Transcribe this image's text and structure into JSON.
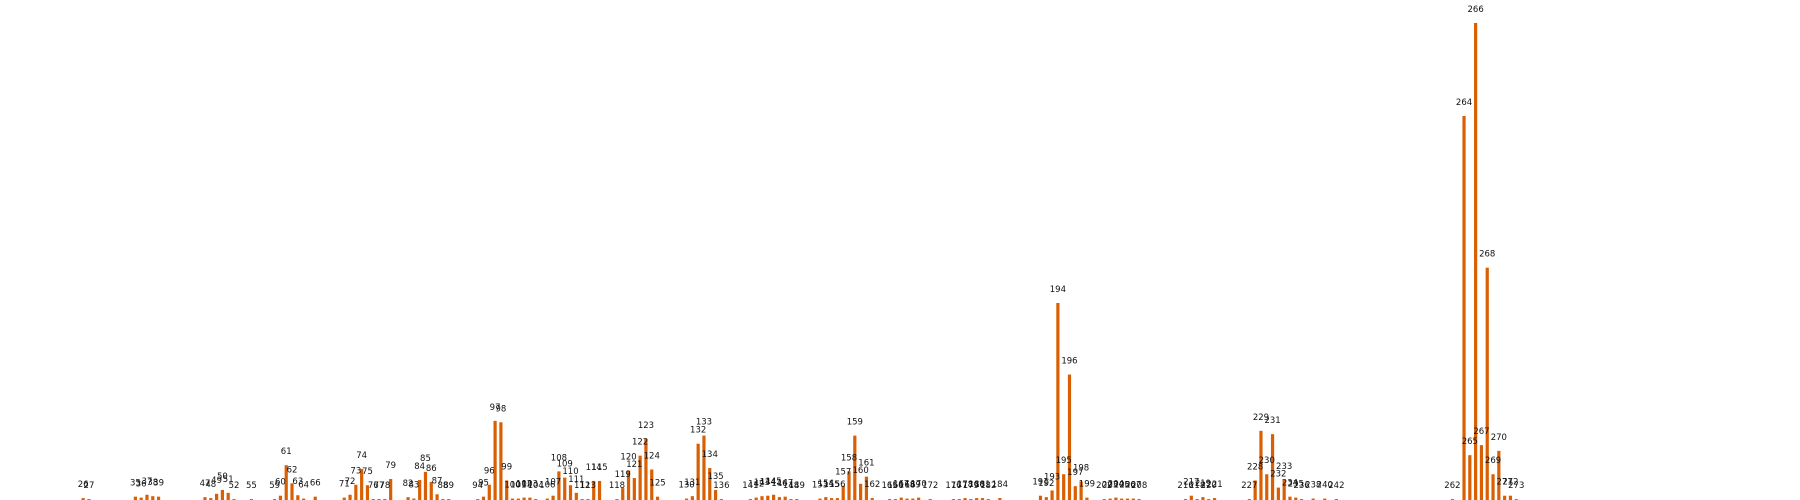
{
  "chart_data": {
    "type": "bar",
    "title": "",
    "xlabel": "",
    "ylabel": "",
    "bar_color": "#d95f02",
    "ylim": [
      0,
      100
    ],
    "grid": false,
    "legend": "none",
    "points": [
      {
        "x": 26,
        "label": "26",
        "value": 0.4
      },
      {
        "x": 27,
        "label": "27",
        "value": 0.2
      },
      {
        "x": 35,
        "label": "35",
        "value": 0.7
      },
      {
        "x": 36,
        "label": "36",
        "value": 0.5
      },
      {
        "x": 37,
        "label": "37",
        "value": 1.1
      },
      {
        "x": 38,
        "label": "38",
        "value": 0.8
      },
      {
        "x": 39,
        "label": "39",
        "value": 0.7
      },
      {
        "x": 47,
        "label": "47",
        "value": 0.6
      },
      {
        "x": 48,
        "label": "48",
        "value": 0.4
      },
      {
        "x": 49,
        "label": "49",
        "value": 1.3
      },
      {
        "x": 50,
        "label": "50",
        "value": 2.1
      },
      {
        "x": 51,
        "label": "51",
        "value": 1.5
      },
      {
        "x": 52,
        "label": "52",
        "value": 0.2
      },
      {
        "x": 55,
        "label": "55",
        "value": 0.2
      },
      {
        "x": 59,
        "label": "59",
        "value": 0.2
      },
      {
        "x": 60,
        "label": "60",
        "value": 0.9
      },
      {
        "x": 61,
        "label": "61",
        "value": 7.3
      },
      {
        "x": 62,
        "label": "62",
        "value": 3.5
      },
      {
        "x": 63,
        "label": "63",
        "value": 1.0
      },
      {
        "x": 64,
        "label": "64",
        "value": 0.3
      },
      {
        "x": 66,
        "label": "66",
        "value": 0.7
      },
      {
        "x": 71,
        "label": "71",
        "value": 0.5
      },
      {
        "x": 72,
        "label": "72",
        "value": 1.1
      },
      {
        "x": 73,
        "label": "73",
        "value": 3.2
      },
      {
        "x": 74,
        "label": "74",
        "value": 6.5
      },
      {
        "x": 75,
        "label": "75",
        "value": 3.1
      },
      {
        "x": 76,
        "label": "76",
        "value": 0.2
      },
      {
        "x": 77,
        "label": "77",
        "value": 0.2
      },
      {
        "x": 78,
        "label": "78",
        "value": 0.2
      },
      {
        "x": 79,
        "label": "79",
        "value": 4.4
      },
      {
        "x": 82,
        "label": "82",
        "value": 0.6
      },
      {
        "x": 83,
        "label": "83",
        "value": 0.3
      },
      {
        "x": 84,
        "label": "84",
        "value": 4.2
      },
      {
        "x": 85,
        "label": "85",
        "value": 5.9
      },
      {
        "x": 86,
        "label": "86",
        "value": 3.8
      },
      {
        "x": 87,
        "label": "87",
        "value": 1.2
      },
      {
        "x": 88,
        "label": "88",
        "value": 0.2
      },
      {
        "x": 89,
        "label": "89",
        "value": 0.2
      },
      {
        "x": 94,
        "label": "94",
        "value": 0.2
      },
      {
        "x": 95,
        "label": "95",
        "value": 0.7
      },
      {
        "x": 96,
        "label": "96",
        "value": 3.2
      },
      {
        "x": 97,
        "label": "97",
        "value": 16.6
      },
      {
        "x": 98,
        "label": "98",
        "value": 16.3
      },
      {
        "x": 99,
        "label": "99",
        "value": 4.1
      },
      {
        "x": 100,
        "label": "100",
        "value": 0.3
      },
      {
        "x": 101,
        "label": "101",
        "value": 0.3
      },
      {
        "x": 102,
        "label": "102",
        "value": 0.5
      },
      {
        "x": 103,
        "label": "103",
        "value": 0.5
      },
      {
        "x": 104,
        "label": "104",
        "value": 0.2
      },
      {
        "x": 106,
        "label": "106",
        "value": 0.3
      },
      {
        "x": 107,
        "label": "107",
        "value": 0.9
      },
      {
        "x": 108,
        "label": "108",
        "value": 6.0
      },
      {
        "x": 109,
        "label": "109",
        "value": 4.7
      },
      {
        "x": 110,
        "label": "110",
        "value": 3.1
      },
      {
        "x": 111,
        "label": "111",
        "value": 1.5
      },
      {
        "x": 112,
        "label": "112",
        "value": 0.2
      },
      {
        "x": 113,
        "label": "113",
        "value": 0.2
      },
      {
        "x": 114,
        "label": "114",
        "value": 4.0
      },
      {
        "x": 115,
        "label": "115",
        "value": 4.0
      },
      {
        "x": 118,
        "label": "118",
        "value": 0.2
      },
      {
        "x": 119,
        "label": "119",
        "value": 2.5
      },
      {
        "x": 120,
        "label": "120",
        "value": 6.2
      },
      {
        "x": 121,
        "label": "121",
        "value": 4.6
      },
      {
        "x": 122,
        "label": "122",
        "value": 9.3
      },
      {
        "x": 123,
        "label": "123",
        "value": 12.8
      },
      {
        "x": 124,
        "label": "124",
        "value": 6.4
      },
      {
        "x": 125,
        "label": "125",
        "value": 0.7
      },
      {
        "x": 130,
        "label": "130",
        "value": 0.3
      },
      {
        "x": 131,
        "label": "131",
        "value": 0.8
      },
      {
        "x": 132,
        "label": "132",
        "value": 11.8
      },
      {
        "x": 133,
        "label": "133",
        "value": 13.5
      },
      {
        "x": 134,
        "label": "134",
        "value": 6.7
      },
      {
        "x": 135,
        "label": "135",
        "value": 2.1
      },
      {
        "x": 136,
        "label": "136",
        "value": 0.2
      },
      {
        "x": 141,
        "label": "141",
        "value": 0.2
      },
      {
        "x": 142,
        "label": "142",
        "value": 0.5
      },
      {
        "x": 143,
        "label": "143",
        "value": 0.8
      },
      {
        "x": 144,
        "label": "144",
        "value": 0.9
      },
      {
        "x": 145,
        "label": "145",
        "value": 1.1
      },
      {
        "x": 146,
        "label": "146",
        "value": 0.6
      },
      {
        "x": 147,
        "label": "147",
        "value": 0.7
      },
      {
        "x": 148,
        "label": "148",
        "value": 0.2
      },
      {
        "x": 149,
        "label": "149",
        "value": 0.2
      },
      {
        "x": 153,
        "label": "153",
        "value": 0.3
      },
      {
        "x": 154,
        "label": "154",
        "value": 0.6
      },
      {
        "x": 155,
        "label": "155",
        "value": 0.4
      },
      {
        "x": 156,
        "label": "156",
        "value": 0.4
      },
      {
        "x": 157,
        "label": "157",
        "value": 3.0
      },
      {
        "x": 158,
        "label": "158",
        "value": 6.0
      },
      {
        "x": 159,
        "label": "159",
        "value": 13.5
      },
      {
        "x": 160,
        "label": "160",
        "value": 3.4
      },
      {
        "x": 161,
        "label": "161",
        "value": 4.9
      },
      {
        "x": 162,
        "label": "162",
        "value": 0.4
      },
      {
        "x": 165,
        "label": "165",
        "value": 0.2
      },
      {
        "x": 166,
        "label": "166",
        "value": 0.2
      },
      {
        "x": 167,
        "label": "167",
        "value": 0.5
      },
      {
        "x": 168,
        "label": "168",
        "value": 0.3
      },
      {
        "x": 169,
        "label": "169",
        "value": 0.3
      },
      {
        "x": 170,
        "label": "170",
        "value": 0.5
      },
      {
        "x": 172,
        "label": "172",
        "value": 0.2
      },
      {
        "x": 176,
        "label": "176",
        "value": 0.2
      },
      {
        "x": 177,
        "label": "177",
        "value": 0.2
      },
      {
        "x": 178,
        "label": "178",
        "value": 0.4
      },
      {
        "x": 179,
        "label": "179",
        "value": 0.2
      },
      {
        "x": 180,
        "label": "180",
        "value": 0.4
      },
      {
        "x": 181,
        "label": "181",
        "value": 0.4
      },
      {
        "x": 182,
        "label": "182",
        "value": 0.2
      },
      {
        "x": 184,
        "label": "184",
        "value": 0.4
      },
      {
        "x": 191,
        "label": "191",
        "value": 0.9
      },
      {
        "x": 192,
        "label": "192",
        "value": 0.6
      },
      {
        "x": 193,
        "label": "193",
        "value": 2.0
      },
      {
        "x": 194,
        "label": "194",
        "value": 41.3
      },
      {
        "x": 195,
        "label": "195",
        "value": 5.4
      },
      {
        "x": 196,
        "label": "196",
        "value": 26.3
      },
      {
        "x": 197,
        "label": "197",
        "value": 2.9
      },
      {
        "x": 198,
        "label": "198",
        "value": 3.9
      },
      {
        "x": 199,
        "label": "199",
        "value": 0.5
      },
      {
        "x": 202,
        "label": "202",
        "value": 0.2
      },
      {
        "x": 203,
        "label": "203",
        "value": 0.3
      },
      {
        "x": 204,
        "label": "204",
        "value": 0.5
      },
      {
        "x": 205,
        "label": "205",
        "value": 0.3
      },
      {
        "x": 206,
        "label": "206",
        "value": 0.3
      },
      {
        "x": 207,
        "label": "207",
        "value": 0.3
      },
      {
        "x": 208,
        "label": "208",
        "value": 0.2
      },
      {
        "x": 216,
        "label": "216",
        "value": 0.2
      },
      {
        "x": 217,
        "label": "217",
        "value": 0.9
      },
      {
        "x": 218,
        "label": "218",
        "value": 0.2
      },
      {
        "x": 219,
        "label": "219",
        "value": 0.6
      },
      {
        "x": 220,
        "label": "220",
        "value": 0.2
      },
      {
        "x": 221,
        "label": "221",
        "value": 0.4
      },
      {
        "x": 227,
        "label": "227",
        "value": 0.2
      },
      {
        "x": 228,
        "label": "228",
        "value": 4.1
      },
      {
        "x": 229,
        "label": "229",
        "value": 14.5
      },
      {
        "x": 230,
        "label": "230",
        "value": 5.4
      },
      {
        "x": 231,
        "label": "231",
        "value": 13.8
      },
      {
        "x": 232,
        "label": "232",
        "value": 2.6
      },
      {
        "x": 233,
        "label": "233",
        "value": 4.2
      },
      {
        "x": 234,
        "label": "234",
        "value": 0.7
      },
      {
        "x": 235,
        "label": "235",
        "value": 0.5
      },
      {
        "x": 236,
        "label": "236",
        "value": 0.2
      },
      {
        "x": 238,
        "label": "238",
        "value": 0.3
      },
      {
        "x": 240,
        "label": "240",
        "value": 0.3
      },
      {
        "x": 242,
        "label": "242",
        "value": 0.2
      },
      {
        "x": 262,
        "label": "262",
        "value": 0.2
      },
      {
        "x": 264,
        "label": "264",
        "value": 80.5
      },
      {
        "x": 265,
        "label": "265",
        "value": 9.4
      },
      {
        "x": 266,
        "label": "266",
        "value": 100
      },
      {
        "x": 267,
        "label": "267",
        "value": 11.5
      },
      {
        "x": 268,
        "label": "268",
        "value": 48.7
      },
      {
        "x": 269,
        "label": "269",
        "value": 5.4
      },
      {
        "x": 270,
        "label": "270",
        "value": 10.3
      },
      {
        "x": 271,
        "label": "271",
        "value": 0.9
      },
      {
        "x": 272,
        "label": "272",
        "value": 0.9
      },
      {
        "x": 273,
        "label": "273",
        "value": 0.2
      }
    ]
  }
}
